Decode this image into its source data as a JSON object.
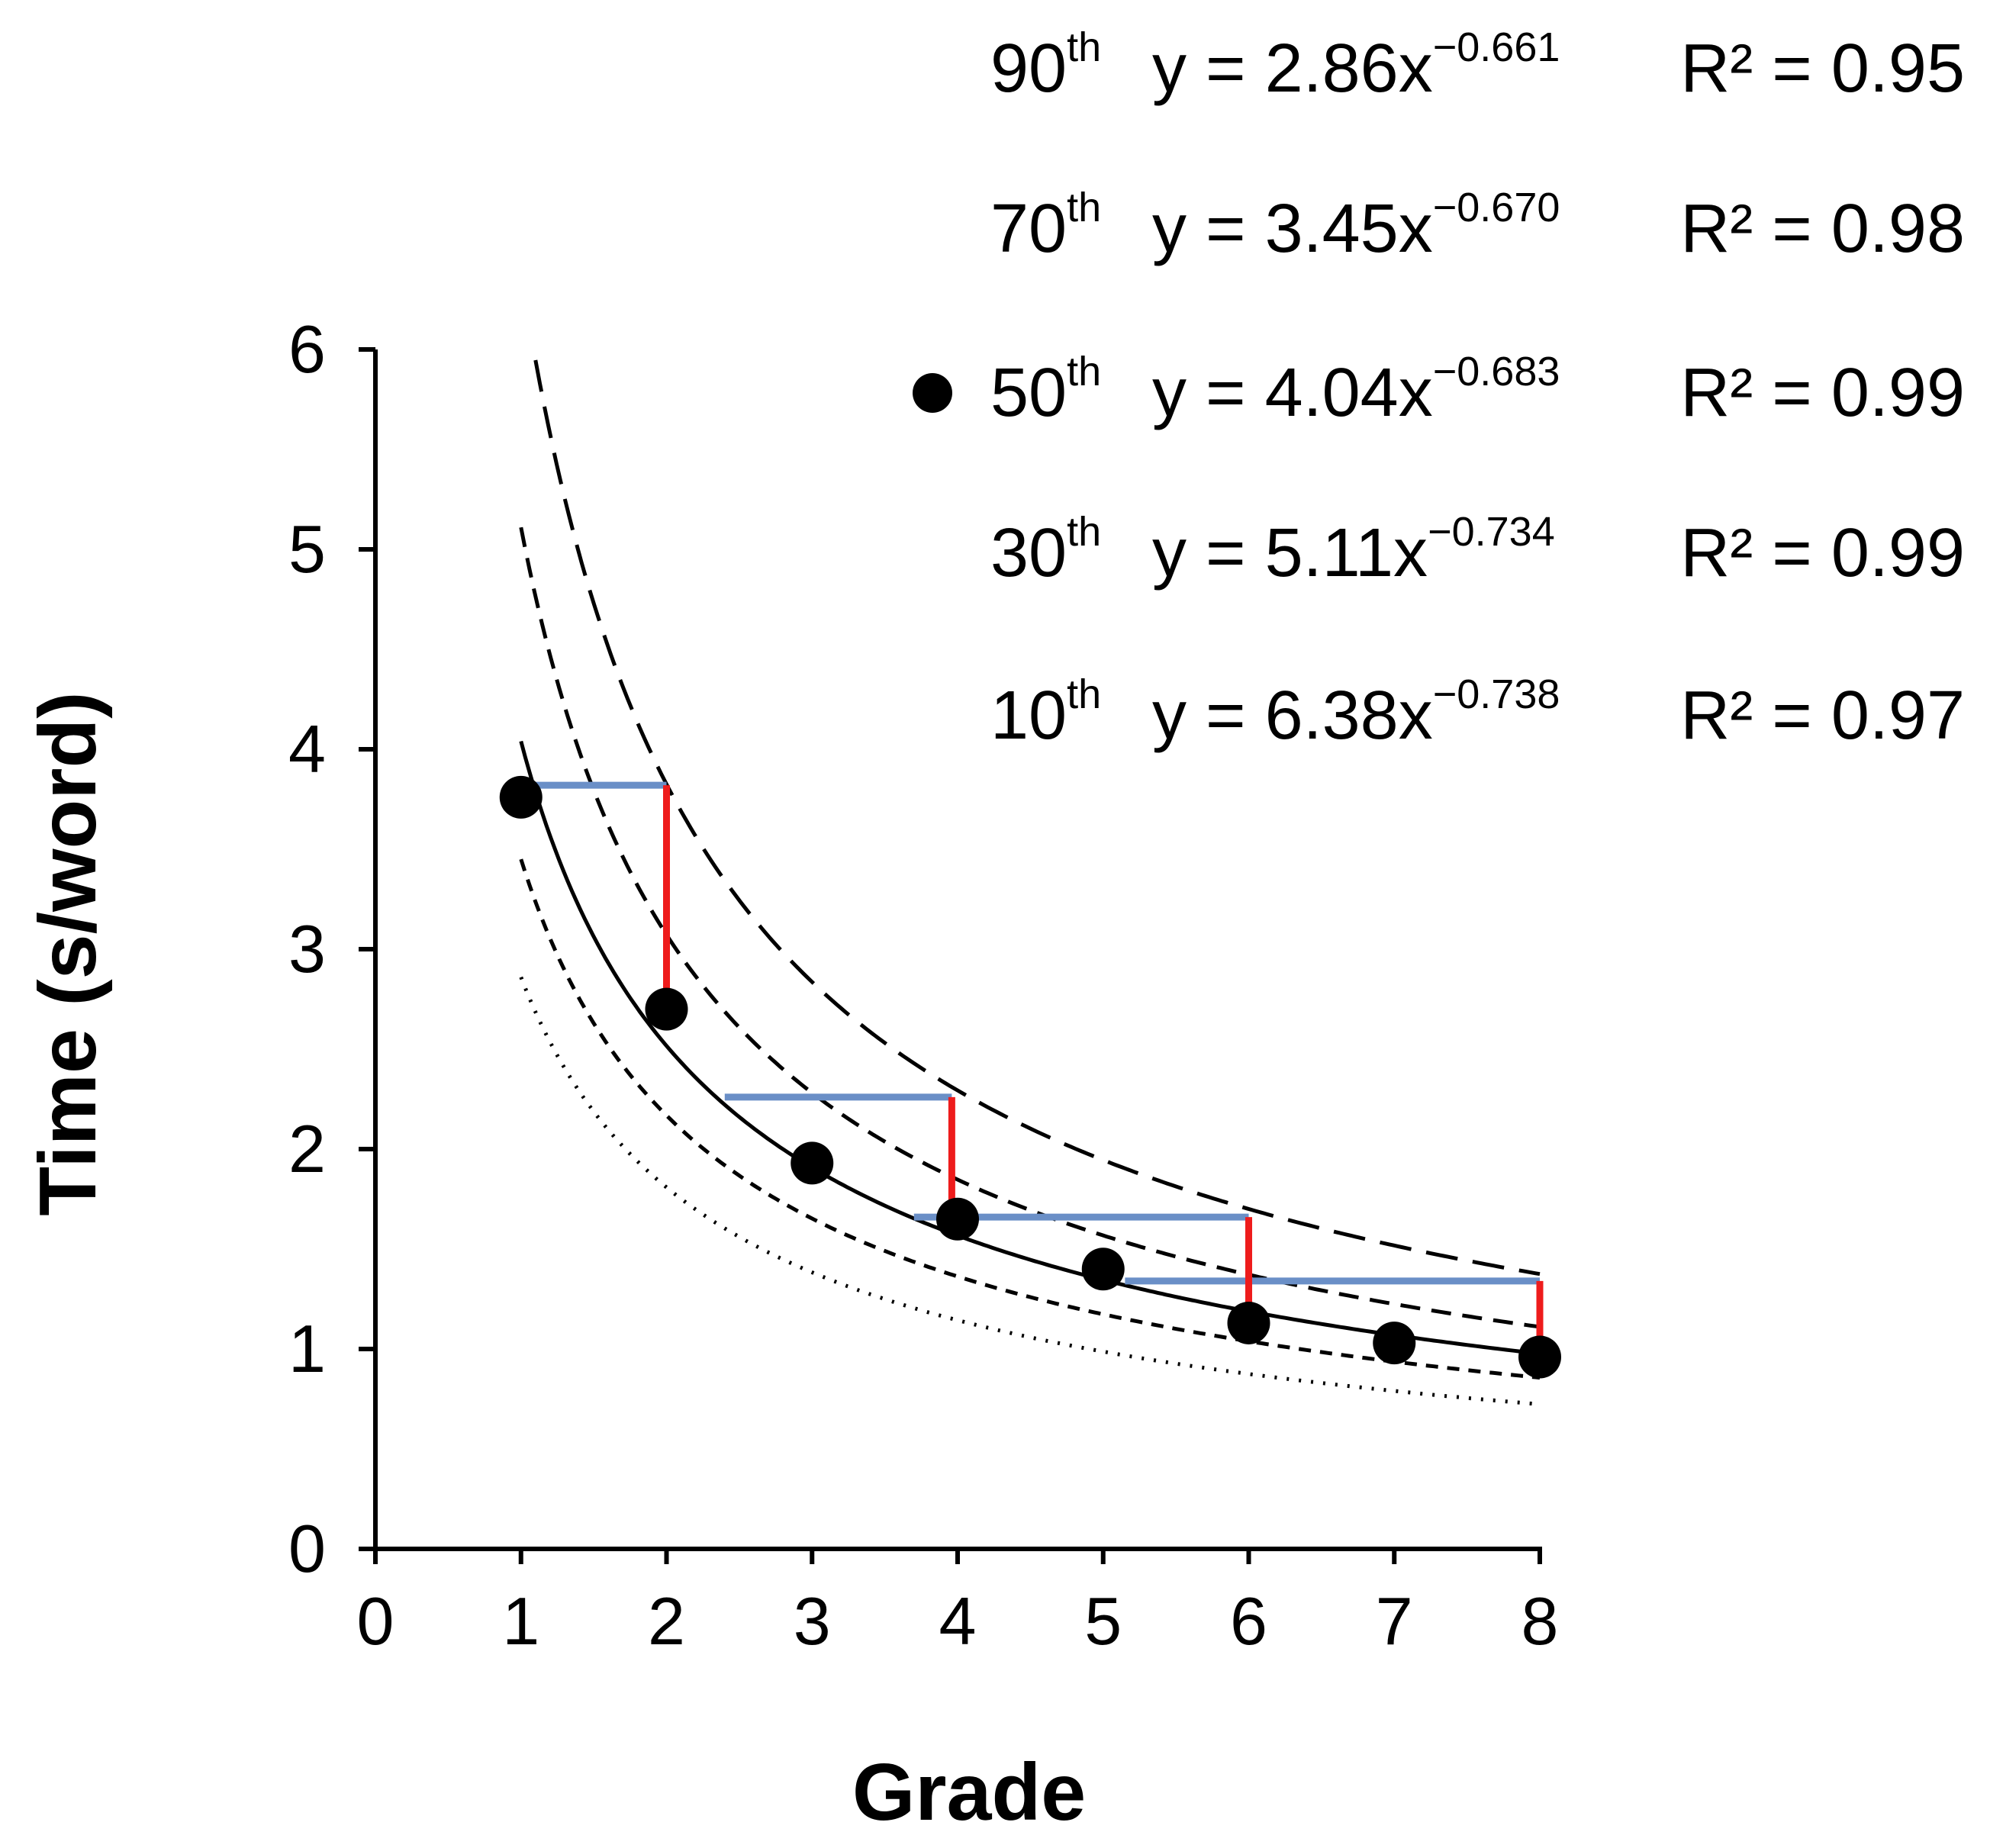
{
  "chart_data": {
    "type": "line",
    "title": "",
    "xlabel": "Grade",
    "ylabel": "Time (s/word)",
    "xlim": [
      0,
      8
    ],
    "ylim": [
      0,
      6
    ],
    "x_ticks": [
      "0",
      "1",
      "2",
      "3",
      "4",
      "5",
      "6",
      "7",
      "8"
    ],
    "y_ticks": [
      "0",
      "1",
      "2",
      "3",
      "4",
      "5",
      "6"
    ],
    "grid": false,
    "legend_position": "top-right",
    "series": [
      {
        "name": "90th",
        "equation": "y = 2.86x",
        "exponent": "−0.661",
        "r2": "R² = 0.95",
        "a": 2.86,
        "b": -0.661,
        "style": "dotted",
        "x_range": [
          1,
          8
        ]
      },
      {
        "name": "70th",
        "equation": "y = 3.45x",
        "exponent": "−0.670",
        "r2": "R² = 0.98",
        "a": 3.45,
        "b": -0.67,
        "style": "short-dash",
        "x_range": [
          1,
          8
        ]
      },
      {
        "name": "50th",
        "equation": "y = 4.04x",
        "exponent": "−0.683",
        "r2": "R² = 0.99",
        "a": 4.04,
        "b": -0.683,
        "style": "solid",
        "x_range": [
          1,
          8
        ],
        "marker": "circle",
        "points": {
          "x": [
            1,
            2,
            3,
            4,
            5,
            6,
            7,
            8
          ],
          "y": [
            3.76,
            2.7,
            1.93,
            1.65,
            1.4,
            1.13,
            1.03,
            0.96
          ]
        }
      },
      {
        "name": "30th",
        "equation": "y = 5.11x",
        "exponent": "−0.734",
        "r2": "R² = 0.99",
        "a": 5.11,
        "b": -0.734,
        "style": "medium-dash",
        "x_range": [
          1,
          8
        ]
      },
      {
        "name": "10th",
        "equation": "y = 6.38x",
        "exponent": "−0.738",
        "r2": "R² = 0.97",
        "a": 6.38,
        "b": -0.738,
        "style": "long-dash",
        "x_range": [
          1.1,
          8
        ]
      }
    ],
    "horizontal_segments": [
      {
        "x1": 1.1,
        "x2": 2.0,
        "y": 3.82
      },
      {
        "x1": 2.4,
        "x2": 3.96,
        "y": 2.26
      },
      {
        "x1": 3.7,
        "x2": 6.0,
        "y": 1.66
      },
      {
        "x1": 5.15,
        "x2": 8.0,
        "y": 1.34
      }
    ],
    "vertical_segments": [
      {
        "x": 2.0,
        "y1": 3.82,
        "y2": 2.75
      },
      {
        "x": 3.96,
        "y1": 2.26,
        "y2": 1.7
      },
      {
        "x": 6.0,
        "y1": 1.66,
        "y2": 1.15
      },
      {
        "x": 8.0,
        "y1": 1.34,
        "y2": 0.98
      }
    ],
    "colors": {
      "axis": "#000000",
      "curves": "#000000",
      "markers": "#000000",
      "horizontal_segments": "#6a8fc7",
      "vertical_segments": "#ee1c1c"
    }
  }
}
